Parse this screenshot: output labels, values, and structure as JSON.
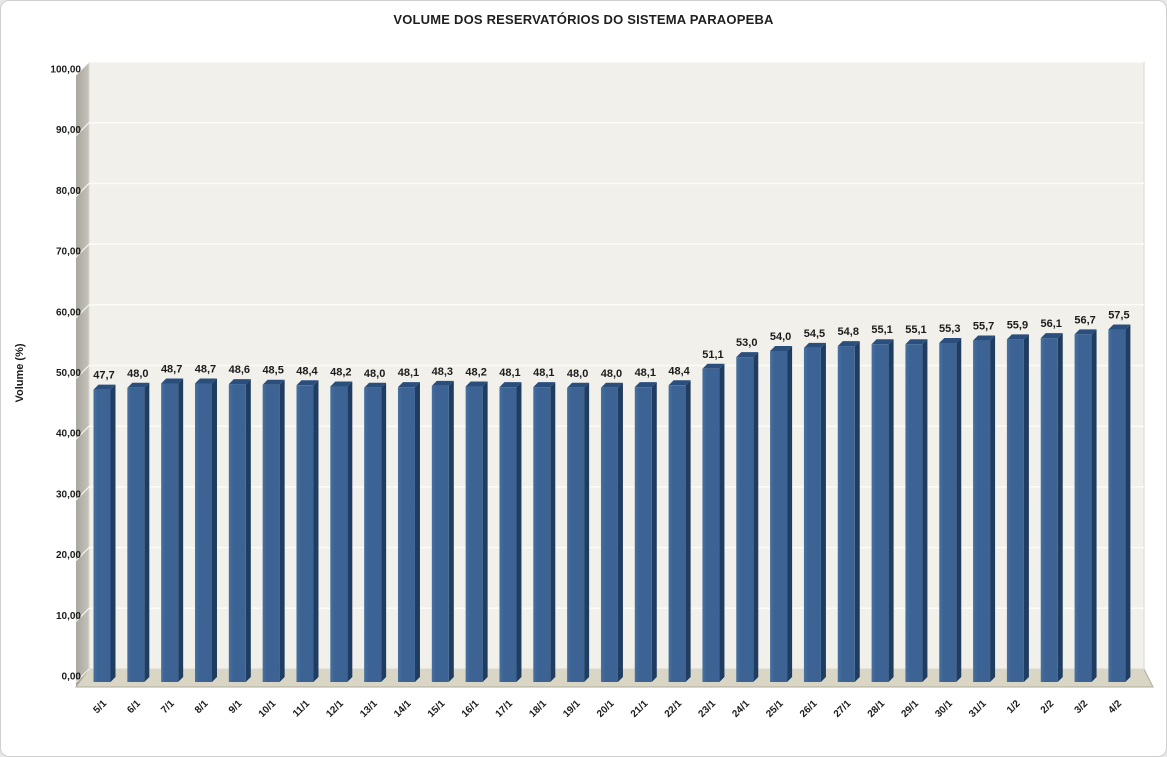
{
  "window": {
    "background": "#ffffff",
    "border_color": "#cfcfcf"
  },
  "chart_data": {
    "type": "bar",
    "title": "VOLUME DOS RESERVATÓRIOS DO SISTEMA PARAOPEBA",
    "xlabel": "",
    "ylabel": "Volume (%)",
    "ylim": [
      0,
      100
    ],
    "ytick_step": 10,
    "ytick_labels": [
      "0,00",
      "10,00",
      "20,00",
      "30,00",
      "40,00",
      "50,00",
      "60,00",
      "70,00",
      "80,00",
      "90,00",
      "100,00"
    ],
    "grid": true,
    "legend": false,
    "style": "excel-3d-column",
    "categories": [
      "5/1",
      "6/1",
      "7/1",
      "8/1",
      "9/1",
      "10/1",
      "11/1",
      "12/1",
      "13/1",
      "14/1",
      "15/1",
      "16/1",
      "17/1",
      "18/1",
      "19/1",
      "20/1",
      "21/1",
      "22/1",
      "23/1",
      "24/1",
      "25/1",
      "26/1",
      "27/1",
      "28/1",
      "29/1",
      "30/1",
      "31/1",
      "1/2",
      "2/2",
      "3/2",
      "4/2"
    ],
    "values": [
      47.7,
      48.0,
      48.7,
      48.7,
      48.6,
      48.5,
      48.4,
      48.2,
      48.0,
      48.1,
      48.3,
      48.2,
      48.1,
      48.1,
      48.0,
      48.0,
      48.1,
      48.4,
      51.1,
      53.0,
      54.0,
      54.5,
      54.8,
      55.1,
      55.1,
      55.3,
      55.7,
      55.9,
      56.1,
      56.7,
      57.5
    ],
    "decimal_separator": ",",
    "colors": {
      "bar_front": "#3C6394",
      "bar_front_light": "#46719F",
      "bar_side": "#1F3D61",
      "bar_top": "#2A4F7D",
      "back_wall": "#F2F0EA",
      "wall_edge": "#D9D7CF",
      "side_wall_dark": "#A9A79E",
      "side_wall_light": "#C4C2B9",
      "floor": "#DAD6C6",
      "floor_edge": "#AFAB9B",
      "gridline": "#FCFBF8",
      "label_text": "#1C1C1C"
    }
  }
}
